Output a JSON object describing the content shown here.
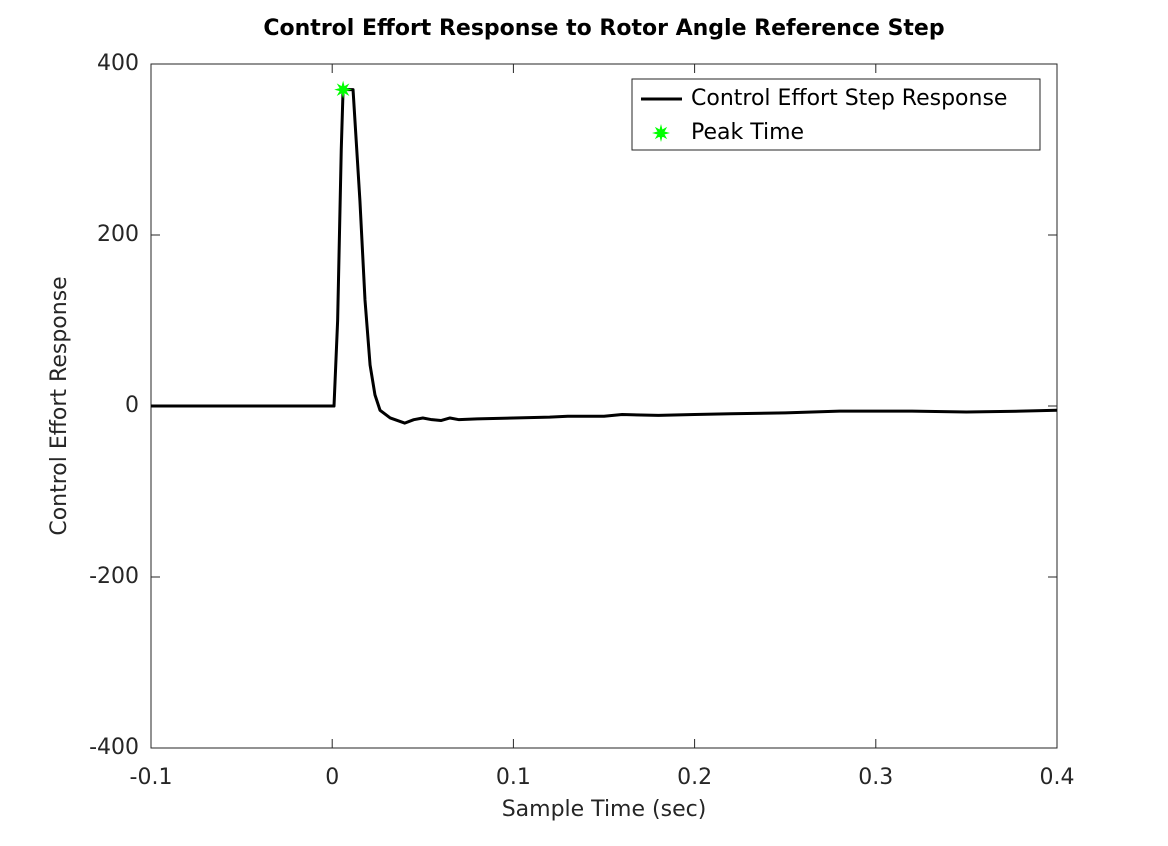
{
  "chart_data": {
    "type": "line",
    "title": "Control Effort Response to Rotor Angle Reference Step",
    "x_label": "Sample Time (sec)",
    "y_label": "Control Effort Response",
    "xlim": [
      -0.1,
      0.4
    ],
    "xticks": [
      -0.1,
      0,
      0.1,
      0.2,
      0.3,
      0.4
    ],
    "ylim": [
      -400,
      400
    ],
    "yticks": [
      -400,
      -200,
      0,
      200,
      400
    ],
    "grid": false,
    "legend": "northeast",
    "series": [
      {
        "name": "Control Effort Step Response",
        "color": "#000000",
        "style": "line",
        "x": [
          -0.1,
          0.001,
          0.003,
          0.005,
          0.006,
          0.0115,
          0.0153,
          0.0181,
          0.0209,
          0.0236,
          0.0264,
          0.032,
          0.04,
          0.045,
          0.05,
          0.055,
          0.06,
          0.065,
          0.07,
          0.08,
          0.1,
          0.12,
          0.13,
          0.15,
          0.16,
          0.18,
          0.2,
          0.22,
          0.25,
          0.28,
          0.32,
          0.35,
          0.38,
          0.4
        ],
        "values": [
          0,
          0,
          100,
          300,
          370,
          370,
          240,
          124,
          48,
          13,
          -5,
          -14,
          -20,
          -16,
          -14,
          -16,
          -17,
          -14,
          -16,
          -15,
          -14,
          -13,
          -12,
          -12,
          -10,
          -11,
          -10,
          -9,
          -8,
          -6,
          -6,
          -7,
          -6,
          -5
        ]
      },
      {
        "name": "Peak Time",
        "color": "#00ff00",
        "style": "marker",
        "x": [
          0.006
        ],
        "values": [
          370
        ]
      }
    ]
  }
}
